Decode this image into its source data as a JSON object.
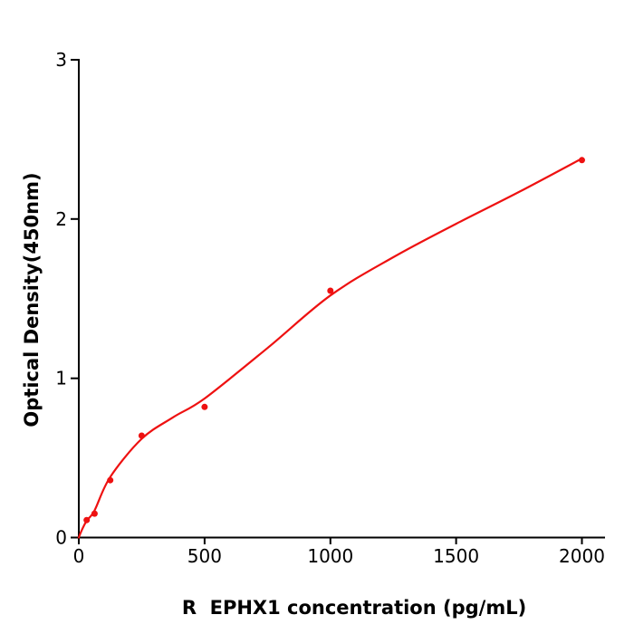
{
  "figure": {
    "background_color": "#ffffff"
  },
  "chart_data": {
    "type": "scatter",
    "title": "",
    "xlabel": "R  EPHX1 concentration (pg/mL)",
    "ylabel": "Optical Density(450nm)",
    "xlim": [
      0,
      2000
    ],
    "ylim": [
      0,
      3
    ],
    "x_ticks": [
      0,
      500,
      1000,
      1500,
      2000
    ],
    "y_ticks": [
      0,
      1,
      2,
      3
    ],
    "grid": false,
    "legend_position": "none",
    "axis_color": "#000000",
    "text_color": "#000000",
    "series": [
      {
        "name": "fit-curve",
        "kind": "line",
        "color": "#ee1111",
        "stroke_width": 2.2,
        "x": [
          0,
          10,
          31.25,
          62.5,
          125,
          250,
          375,
          500,
          750,
          1000,
          1250,
          1500,
          1750,
          2000
        ],
        "y": [
          0.0,
          0.04,
          0.105,
          0.17,
          0.38,
          0.62,
          0.755,
          0.873,
          1.19,
          1.52,
          1.76,
          1.97,
          2.17,
          2.38
        ]
      },
      {
        "name": "standard-points",
        "kind": "scatter",
        "color": "#ee1111",
        "marker_radius": 3.5,
        "x": [
          31.25,
          62.5,
          125,
          250,
          500,
          1000,
          2000
        ],
        "y": [
          0.11,
          0.15,
          0.36,
          0.64,
          0.82,
          1.55,
          2.37
        ]
      }
    ]
  }
}
